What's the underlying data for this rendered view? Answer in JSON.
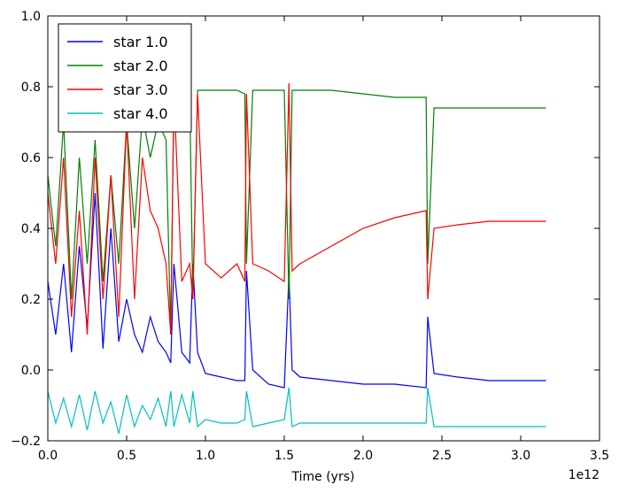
{
  "chart_data": {
    "type": "line",
    "title": "",
    "xlabel": "Time (yrs)",
    "ylabel": "",
    "x_offset_label": "1e12",
    "xlim": [
      0,
      3.5
    ],
    "ylim": [
      -0.2,
      1.0
    ],
    "x_ticks": [
      0.0,
      0.5,
      1.0,
      1.5,
      2.0,
      2.5,
      3.0,
      3.5
    ],
    "x_tick_labels": [
      "0.0",
      "0.5",
      "1.0",
      "1.5",
      "2.0",
      "2.5",
      "3.0",
      "3.5"
    ],
    "y_ticks": [
      -0.2,
      0.0,
      0.2,
      0.4,
      0.6,
      0.8,
      1.0
    ],
    "y_tick_labels": [
      "−0.2",
      "0.0",
      "0.2",
      "0.4",
      "0.6",
      "0.8",
      "1.0"
    ],
    "grid": false,
    "legend_position": "top-left",
    "series": [
      {
        "name": "star 1.0",
        "color": "#0000ff",
        "x": [
          0.0,
          0.05,
          0.1,
          0.15,
          0.2,
          0.25,
          0.3,
          0.35,
          0.4,
          0.45,
          0.5,
          0.55,
          0.6,
          0.65,
          0.7,
          0.75,
          0.78,
          0.8,
          0.85,
          0.9,
          0.92,
          0.95,
          1.0,
          1.1,
          1.2,
          1.25,
          1.26,
          1.3,
          1.4,
          1.5,
          1.53,
          1.55,
          1.6,
          1.8,
          2.0,
          2.2,
          2.4,
          2.41,
          2.45,
          2.6,
          2.8,
          3.0,
          3.16
        ],
        "y": [
          0.25,
          0.1,
          0.3,
          0.05,
          0.35,
          0.12,
          0.5,
          0.06,
          0.4,
          0.08,
          0.2,
          0.1,
          0.05,
          0.15,
          0.08,
          0.05,
          0.02,
          0.3,
          0.05,
          0.02,
          0.3,
          0.05,
          -0.01,
          -0.02,
          -0.03,
          -0.03,
          0.28,
          0.0,
          -0.04,
          -0.05,
          0.27,
          0.0,
          -0.02,
          -0.03,
          -0.04,
          -0.04,
          -0.05,
          0.15,
          -0.01,
          -0.02,
          -0.03,
          -0.03,
          -0.03
        ]
      },
      {
        "name": "star 2.0",
        "color": "#008000",
        "x": [
          0.0,
          0.05,
          0.1,
          0.15,
          0.2,
          0.25,
          0.3,
          0.35,
          0.4,
          0.45,
          0.5,
          0.55,
          0.6,
          0.65,
          0.7,
          0.75,
          0.78,
          0.8,
          0.85,
          0.9,
          0.92,
          0.95,
          1.0,
          1.1,
          1.2,
          1.25,
          1.26,
          1.3,
          1.4,
          1.5,
          1.53,
          1.55,
          1.6,
          1.8,
          2.0,
          2.2,
          2.4,
          2.41,
          2.45,
          2.6,
          2.8,
          3.0,
          3.16
        ],
        "y": [
          0.55,
          0.35,
          0.7,
          0.2,
          0.6,
          0.3,
          0.65,
          0.25,
          0.55,
          0.3,
          0.7,
          0.4,
          0.72,
          0.6,
          0.7,
          0.65,
          0.1,
          0.78,
          0.79,
          0.78,
          0.2,
          0.79,
          0.79,
          0.79,
          0.79,
          0.78,
          0.3,
          0.79,
          0.79,
          0.79,
          0.2,
          0.79,
          0.79,
          0.79,
          0.78,
          0.77,
          0.77,
          0.3,
          0.74,
          0.74,
          0.74,
          0.74,
          0.74
        ]
      },
      {
        "name": "star 3.0",
        "color": "#ff0000",
        "x": [
          0.0,
          0.05,
          0.1,
          0.15,
          0.2,
          0.25,
          0.3,
          0.35,
          0.4,
          0.45,
          0.5,
          0.55,
          0.6,
          0.65,
          0.7,
          0.75,
          0.78,
          0.8,
          0.85,
          0.9,
          0.92,
          0.95,
          1.0,
          1.1,
          1.2,
          1.25,
          1.26,
          1.3,
          1.4,
          1.5,
          1.53,
          1.55,
          1.6,
          1.8,
          2.0,
          2.2,
          2.4,
          2.41,
          2.45,
          2.6,
          2.8,
          3.0,
          3.16
        ],
        "y": [
          0.5,
          0.3,
          0.6,
          0.15,
          0.45,
          0.1,
          0.6,
          0.2,
          0.55,
          0.15,
          0.7,
          0.2,
          0.6,
          0.45,
          0.4,
          0.3,
          0.1,
          0.78,
          0.25,
          0.3,
          0.2,
          0.78,
          0.3,
          0.26,
          0.3,
          0.25,
          0.78,
          0.3,
          0.28,
          0.25,
          0.81,
          0.28,
          0.3,
          0.35,
          0.4,
          0.43,
          0.45,
          0.2,
          0.4,
          0.41,
          0.42,
          0.42,
          0.42
        ]
      },
      {
        "name": "star 4.0",
        "color": "#00bfbf",
        "x": [
          0.0,
          0.05,
          0.1,
          0.15,
          0.2,
          0.25,
          0.3,
          0.35,
          0.4,
          0.45,
          0.5,
          0.55,
          0.6,
          0.65,
          0.7,
          0.75,
          0.78,
          0.8,
          0.85,
          0.9,
          0.92,
          0.95,
          1.0,
          1.1,
          1.2,
          1.25,
          1.26,
          1.3,
          1.4,
          1.5,
          1.53,
          1.55,
          1.6,
          1.8,
          2.0,
          2.2,
          2.4,
          2.41,
          2.45,
          2.6,
          2.8,
          3.0,
          3.16
        ],
        "y": [
          -0.06,
          -0.15,
          -0.08,
          -0.16,
          -0.07,
          -0.17,
          -0.06,
          -0.15,
          -0.09,
          -0.18,
          -0.07,
          -0.16,
          -0.1,
          -0.14,
          -0.08,
          -0.16,
          -0.06,
          -0.16,
          -0.07,
          -0.15,
          -0.06,
          -0.16,
          -0.14,
          -0.15,
          -0.15,
          -0.14,
          -0.06,
          -0.16,
          -0.15,
          -0.14,
          -0.05,
          -0.16,
          -0.15,
          -0.15,
          -0.15,
          -0.15,
          -0.15,
          -0.05,
          -0.16,
          -0.16,
          -0.16,
          -0.16,
          -0.16
        ]
      }
    ]
  }
}
